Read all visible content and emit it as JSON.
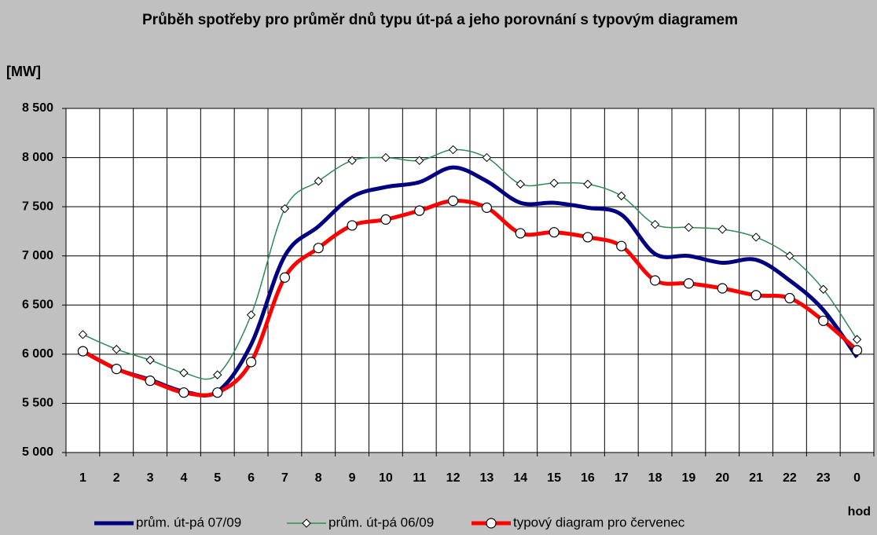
{
  "chart_data": {
    "type": "line",
    "title": "Průběh spotřeby pro průměr dnů typu út-pá a jeho porovnání s typovým diagramem",
    "y_label": "[MW]",
    "x_label": "hod",
    "categories": [
      "1",
      "2",
      "3",
      "4",
      "5",
      "6",
      "7",
      "8",
      "9",
      "10",
      "11",
      "12",
      "13",
      "14",
      "15",
      "16",
      "17",
      "18",
      "19",
      "20",
      "21",
      "22",
      "23",
      "0"
    ],
    "series": [
      {
        "name": "prům. út-pá 07/09",
        "color": "#000080",
        "width": 5,
        "marker": null,
        "values": [
          6030,
          5850,
          5740,
          5620,
          5620,
          6100,
          7000,
          7300,
          7600,
          7700,
          7750,
          7900,
          7760,
          7540,
          7540,
          7490,
          7420,
          7020,
          7000,
          6930,
          6960,
          6750,
          6450,
          5970
        ]
      },
      {
        "name": "prům. út-pá 06/09",
        "color": "#2e8b57",
        "width": 1.5,
        "marker": "diamond",
        "values": [
          6200,
          6050,
          5940,
          5810,
          5790,
          6400,
          7480,
          7760,
          7970,
          8000,
          7970,
          8080,
          8000,
          7730,
          7740,
          7730,
          7610,
          7320,
          7290,
          7270,
          7190,
          7000,
          6660,
          6150
        ]
      },
      {
        "name": "typový diagram pro červenec",
        "color": "#ff0000",
        "width": 5,
        "marker": "circle",
        "values": [
          6030,
          5850,
          5730,
          5610,
          5610,
          5920,
          6780,
          7080,
          7310,
          7370,
          7460,
          7560,
          7490,
          7230,
          7240,
          7190,
          7100,
          6750,
          6720,
          6670,
          6600,
          6570,
          6340,
          6040
        ]
      }
    ],
    "ylim": [
      5000,
      8500
    ],
    "yticks": [
      {
        "value": 5000,
        "label": "5 000"
      },
      {
        "value": 5500,
        "label": "5 500"
      },
      {
        "value": 6000,
        "label": "6 000"
      },
      {
        "value": 6500,
        "label": "6 500"
      },
      {
        "value": 7000,
        "label": "7 000"
      },
      {
        "value": 7500,
        "label": "7 500"
      },
      {
        "value": 8000,
        "label": "8 000"
      },
      {
        "value": 8500,
        "label": "8 500"
      }
    ],
    "grid": true
  }
}
